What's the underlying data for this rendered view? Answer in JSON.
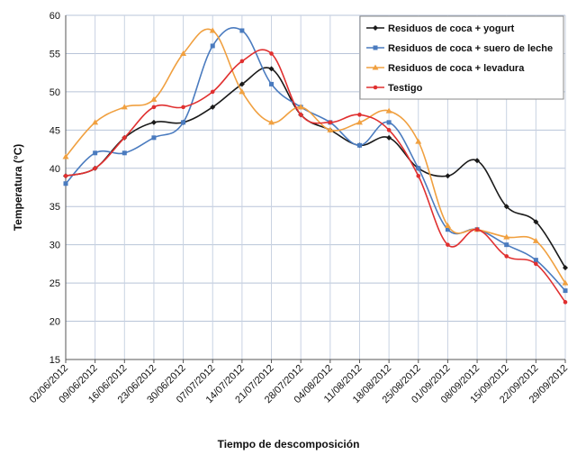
{
  "chart_data": {
    "type": "line",
    "xlabel": "Tiempo de descomposición",
    "ylabel": "Temperatura (°C)",
    "ylim": [
      15,
      60
    ],
    "yticks": [
      15,
      20,
      25,
      30,
      35,
      40,
      45,
      50,
      55,
      60
    ],
    "grid": "horizontal",
    "legend_position": "top-right",
    "categories": [
      "02/06/2012",
      "09/06/2012",
      "16/06/2012",
      "23/06/2012",
      "30/06/2012",
      "07/07/2012",
      "14/07/2012",
      "21/07/2012",
      "28/07/2012",
      "04/08/2012",
      "11/08/2012",
      "18/08/2012",
      "25/08/2012",
      "01/09/2012",
      "08/09/2012",
      "15/09/2012",
      "22/09/2012",
      "29/09/2012"
    ],
    "series": [
      {
        "name": "Residuos de coca + yogurt",
        "color": "#1a1a1a",
        "marker": "diamond",
        "values": [
          39,
          40,
          44,
          46,
          46,
          48,
          51,
          53,
          47,
          45,
          43,
          44,
          40,
          39,
          41,
          35,
          33,
          27
        ]
      },
      {
        "name": "Residuos de coca + suero de leche",
        "color": "#4a7bbf",
        "marker": "square",
        "values": [
          38,
          42,
          42,
          44,
          46,
          56,
          58,
          51,
          48,
          46,
          43,
          46,
          40,
          32,
          32,
          30,
          28,
          24
        ]
      },
      {
        "name": "Residuos de coca + levadura",
        "color": "#f0a040",
        "marker": "triangle",
        "values": [
          41.5,
          46,
          48,
          49,
          55,
          58,
          50,
          46,
          48,
          45,
          46,
          47.5,
          43.5,
          32.5,
          32,
          31,
          30.5,
          25
        ]
      },
      {
        "name": "Testigo",
        "color": "#e03030",
        "marker": "circle",
        "values": [
          39,
          40,
          44,
          48,
          48,
          50,
          54,
          55,
          47,
          46,
          47,
          45,
          39,
          30,
          32,
          28.5,
          27.5,
          22.5
        ]
      }
    ]
  }
}
